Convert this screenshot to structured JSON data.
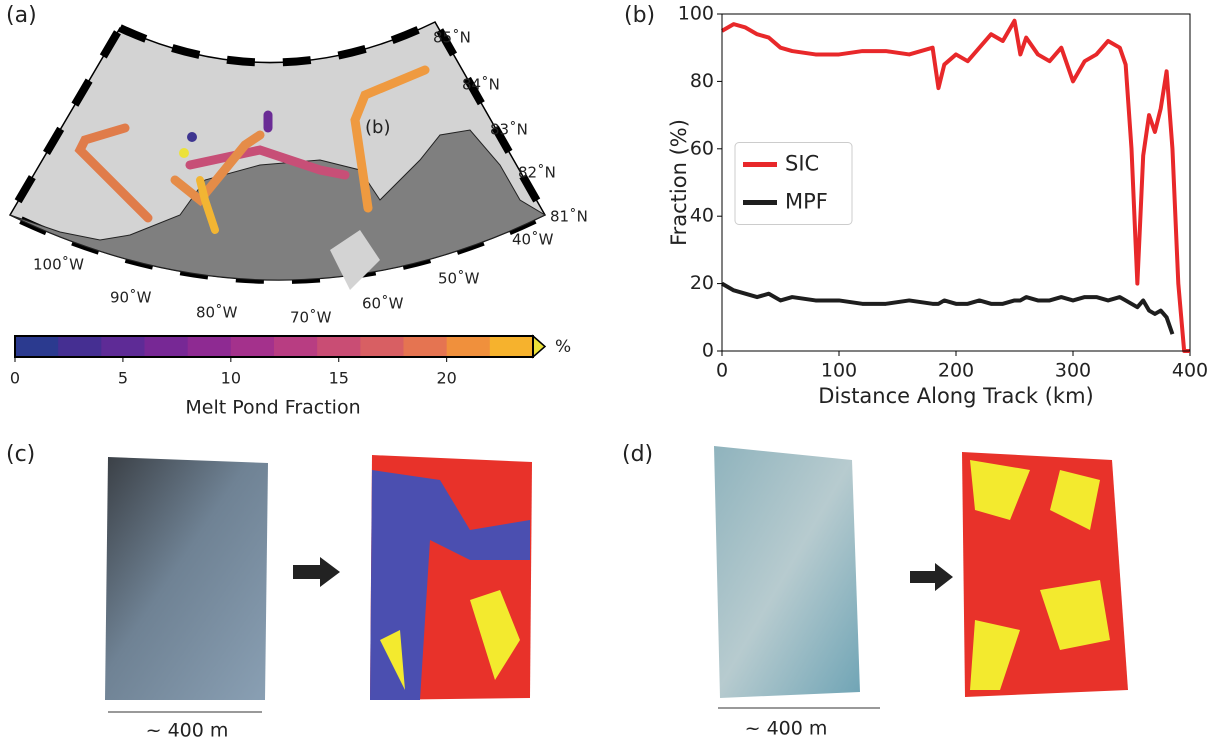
{
  "panel_labels": [
    "(a)",
    "(b)",
    "(c)",
    "(d)"
  ],
  "map": {
    "lat_labels": [
      "85˚N",
      "84˚N",
      "83˚N",
      "82˚N",
      "81˚N"
    ],
    "lon_labels": [
      "100˚W",
      "90˚W",
      "80˚W",
      "70˚W",
      "60˚W",
      "50˚W",
      "40˚W"
    ],
    "track_label": "(b)"
  },
  "colorbar": {
    "label": "Melt Pond Fraction",
    "unit": "%",
    "lim": [
      0,
      24
    ],
    "ticks": [
      0,
      5,
      10,
      15,
      20
    ],
    "colors": [
      "#2b3a8f",
      "#452f92",
      "#5e2b96",
      "#772895",
      "#8e2a92",
      "#a4318c",
      "#b83d82",
      "#c94d74",
      "#d85f63",
      "#e57451",
      "#f0903c",
      "#f6b22d",
      "#ece23a"
    ]
  },
  "chart_data": {
    "type": "line",
    "xlabel": "Distance Along Track (km)",
    "ylabel": "Fraction (%)",
    "x": [
      0,
      10,
      20,
      30,
      40,
      50,
      60,
      80,
      100,
      120,
      140,
      160,
      180,
      185,
      190,
      200,
      210,
      220,
      230,
      240,
      250,
      255,
      260,
      270,
      280,
      290,
      300,
      310,
      320,
      330,
      340,
      345,
      350,
      355,
      360,
      365,
      370,
      375,
      380,
      385,
      390,
      395,
      400
    ],
    "series": [
      {
        "name": "SIC",
        "color": "#e8282a",
        "values": [
          95,
          97,
          96,
          94,
          93,
          90,
          89,
          88,
          88,
          89,
          89,
          88,
          90,
          78,
          85,
          88,
          86,
          90,
          94,
          92,
          98,
          88,
          93,
          88,
          86,
          90,
          80,
          86,
          88,
          92,
          90,
          85,
          60,
          20,
          58,
          70,
          65,
          72,
          83,
          60,
          20,
          0,
          0
        ]
      },
      {
        "name": "MPF",
        "color": "#1e1e1e",
        "values": [
          20,
          18,
          17,
          16,
          17,
          15,
          16,
          15,
          15,
          14,
          14,
          15,
          14,
          14,
          15,
          14,
          14,
          15,
          14,
          14,
          15,
          15,
          16,
          15,
          15,
          16,
          15,
          16,
          16,
          15,
          16,
          15,
          14,
          13,
          15,
          12,
          11,
          12,
          10,
          5,
          null,
          null,
          null
        ]
      }
    ],
    "xlim": [
      0,
      400
    ],
    "ylim": [
      0,
      100
    ],
    "xticks": [
      0,
      100,
      200,
      300,
      400
    ],
    "yticks": [
      0,
      20,
      40,
      60,
      80,
      100
    ],
    "legend": "center left"
  },
  "images": {
    "c": {
      "scale": "~ 400 m"
    },
    "d": {
      "scale": "~ 400 m"
    }
  }
}
